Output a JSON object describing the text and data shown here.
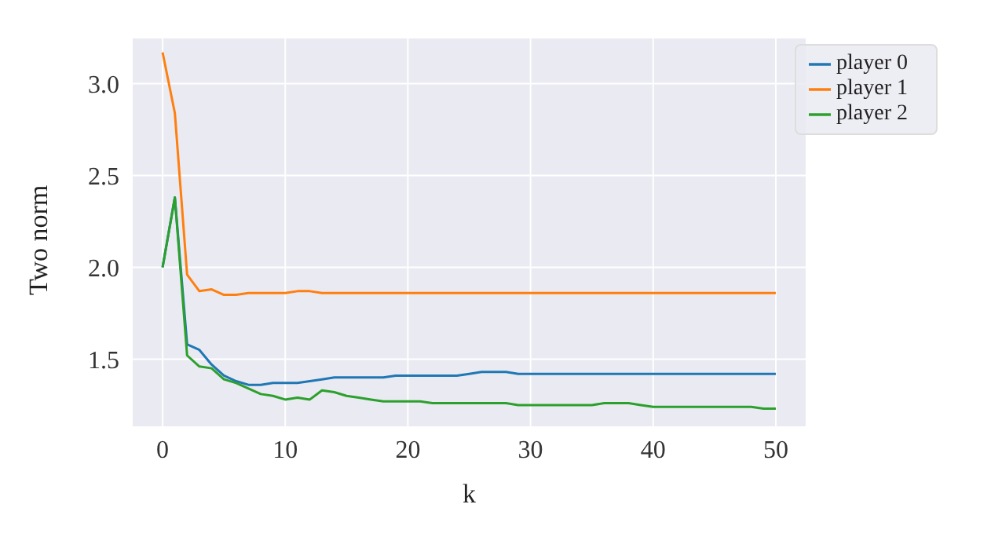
{
  "chart_data": {
    "type": "line",
    "xlabel": "k",
    "ylabel": "Two norm",
    "x": [
      0,
      1,
      2,
      3,
      4,
      5,
      6,
      7,
      8,
      9,
      10,
      11,
      12,
      13,
      14,
      15,
      16,
      17,
      18,
      19,
      20,
      21,
      22,
      23,
      24,
      25,
      26,
      27,
      28,
      29,
      30,
      31,
      32,
      33,
      34,
      35,
      36,
      37,
      38,
      39,
      40,
      41,
      42,
      43,
      44,
      45,
      46,
      47,
      48,
      49,
      50
    ],
    "series": [
      {
        "name": "player 0",
        "color": "#1f77b4",
        "values": [
          2.0,
          2.38,
          1.58,
          1.55,
          1.47,
          1.41,
          1.38,
          1.36,
          1.36,
          1.37,
          1.37,
          1.37,
          1.38,
          1.39,
          1.4,
          1.4,
          1.4,
          1.4,
          1.4,
          1.41,
          1.41,
          1.41,
          1.41,
          1.41,
          1.41,
          1.42,
          1.43,
          1.43,
          1.43,
          1.42,
          1.42,
          1.42,
          1.42,
          1.42,
          1.42,
          1.42,
          1.42,
          1.42,
          1.42,
          1.42,
          1.42,
          1.42,
          1.42,
          1.42,
          1.42,
          1.42,
          1.42,
          1.42,
          1.42,
          1.42,
          1.42
        ]
      },
      {
        "name": "player 1",
        "color": "#ff7f0e",
        "values": [
          3.17,
          2.84,
          1.96,
          1.87,
          1.88,
          1.85,
          1.85,
          1.86,
          1.86,
          1.86,
          1.86,
          1.87,
          1.87,
          1.86,
          1.86,
          1.86,
          1.86,
          1.86,
          1.86,
          1.86,
          1.86,
          1.86,
          1.86,
          1.86,
          1.86,
          1.86,
          1.86,
          1.86,
          1.86,
          1.86,
          1.86,
          1.86,
          1.86,
          1.86,
          1.86,
          1.86,
          1.86,
          1.86,
          1.86,
          1.86,
          1.86,
          1.86,
          1.86,
          1.86,
          1.86,
          1.86,
          1.86,
          1.86,
          1.86,
          1.86,
          1.86
        ]
      },
      {
        "name": "player 2",
        "color": "#2ca02c",
        "values": [
          2.0,
          2.38,
          1.52,
          1.46,
          1.45,
          1.39,
          1.37,
          1.34,
          1.31,
          1.3,
          1.28,
          1.29,
          1.28,
          1.33,
          1.32,
          1.3,
          1.29,
          1.28,
          1.27,
          1.27,
          1.27,
          1.27,
          1.26,
          1.26,
          1.26,
          1.26,
          1.26,
          1.26,
          1.26,
          1.25,
          1.25,
          1.25,
          1.25,
          1.25,
          1.25,
          1.25,
          1.26,
          1.26,
          1.26,
          1.25,
          1.24,
          1.24,
          1.24,
          1.24,
          1.24,
          1.24,
          1.24,
          1.24,
          1.24,
          1.23,
          1.23
        ]
      }
    ],
    "xlim": [
      -2.5,
      52.5
    ],
    "xticks": [
      0,
      10,
      20,
      30,
      40,
      50
    ],
    "ylim": [
      1.13,
      3.25
    ],
    "yticks": [
      {
        "value": 1.5,
        "label": "1.5"
      },
      {
        "value": 2,
        "label": "2.0"
      },
      {
        "value": 2.5,
        "label": "2.5"
      },
      {
        "value": 3,
        "label": "3.0"
      }
    ],
    "grid": true,
    "legend": "top right",
    "marker": "none",
    "line_style": "solid"
  }
}
